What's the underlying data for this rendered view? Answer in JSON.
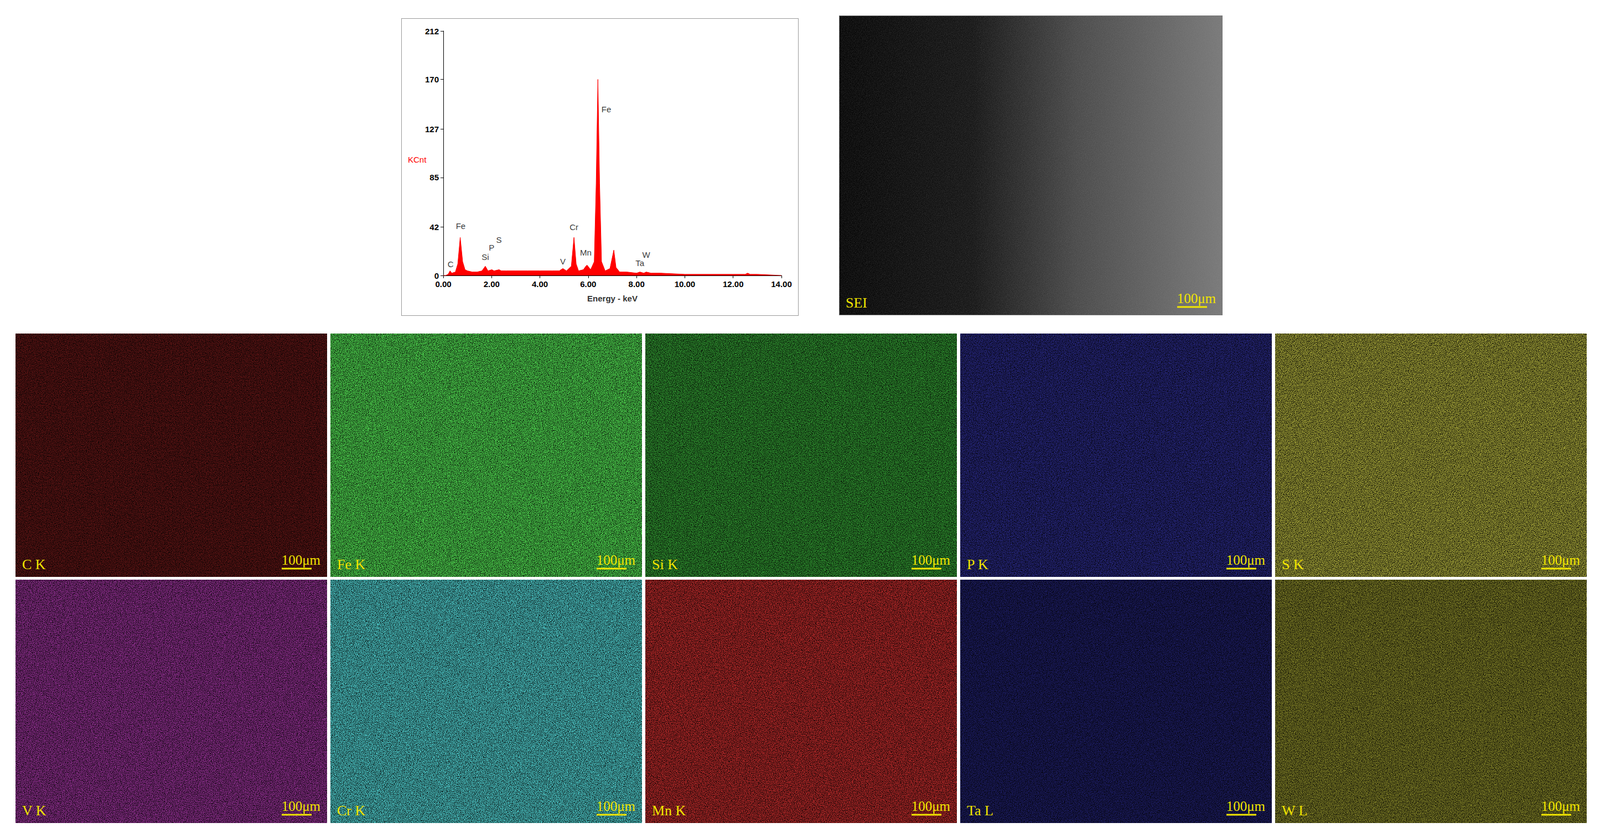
{
  "chart_data": {
    "type": "line",
    "x_label": "Energy - keV",
    "y_label": "KCnt",
    "color": "#ff0000",
    "grid": false,
    "x": [
      0.0,
      0.1,
      0.2,
      0.28,
      0.35,
      0.5,
      0.6,
      0.7,
      0.8,
      0.9,
      1.0,
      1.2,
      1.4,
      1.6,
      1.74,
      1.85,
      2.01,
      2.1,
      2.31,
      2.4,
      2.6,
      3.0,
      3.5,
      4.0,
      4.5,
      4.8,
      4.95,
      5.1,
      5.3,
      5.41,
      5.5,
      5.6,
      5.8,
      5.9,
      5.95,
      6.1,
      6.25,
      6.33,
      6.4,
      6.47,
      6.55,
      6.7,
      6.9,
      7.06,
      7.15,
      7.3,
      7.6,
      8.0,
      8.14,
      8.3,
      8.4,
      8.6,
      9.0,
      10.0,
      11.0,
      12.0,
      12.5,
      12.6,
      12.7,
      13.0,
      14.0
    ],
    "values": [
      0,
      0,
      1,
      4,
      2,
      3,
      10,
      33,
      12,
      5,
      4,
      3,
      3,
      4,
      8,
      4,
      5,
      4,
      5,
      4,
      4,
      4,
      4,
      4,
      4,
      4,
      6,
      4,
      8,
      33,
      10,
      4,
      5,
      8,
      9,
      5,
      12,
      80,
      170,
      80,
      12,
      4,
      6,
      22,
      7,
      3,
      3,
      2,
      3,
      2,
      3,
      2,
      2,
      1,
      1,
      1,
      1,
      2,
      1,
      1,
      0
    ],
    "xlim": [
      0,
      14
    ],
    "xticks": [
      {
        "value": 0,
        "label": "0.00"
      },
      {
        "value": 2,
        "label": "2.00"
      },
      {
        "value": 4,
        "label": "4.00"
      },
      {
        "value": 6,
        "label": "6.00"
      },
      {
        "value": 8,
        "label": "8.00"
      },
      {
        "value": 10,
        "label": "10.00"
      },
      {
        "value": 12,
        "label": "12.00"
      },
      {
        "value": 14,
        "label": "14.00"
      }
    ],
    "ylim": [
      0,
      212
    ],
    "yticks": [
      0,
      42,
      85,
      127,
      170,
      212
    ],
    "annotations": [
      {
        "text": "C",
        "x": 0.3,
        "y": 10
      },
      {
        "text": "Fe",
        "x": 0.72,
        "y": 43
      },
      {
        "text": "Si",
        "x": 1.74,
        "y": 16
      },
      {
        "text": "P",
        "x": 2.0,
        "y": 24
      },
      {
        "text": "S",
        "x": 2.3,
        "y": 31
      },
      {
        "text": "V",
        "x": 4.95,
        "y": 12
      },
      {
        "text": "Cr",
        "x": 5.41,
        "y": 42
      },
      {
        "text": "Mn",
        "x": 5.9,
        "y": 20
      },
      {
        "text": "Fe",
        "x": 6.75,
        "y": 144
      },
      {
        "text": "Ta",
        "x": 8.14,
        "y": 11
      },
      {
        "text": "W",
        "x": 8.4,
        "y": 18
      }
    ]
  },
  "sem_image": {
    "label": "SEI",
    "scale_bar": "100μm"
  },
  "maps": [
    {
      "label": "C K",
      "color": "#5a1414",
      "scale_bar": "100μm"
    },
    {
      "label": "Fe K",
      "color": "#4ed24e",
      "scale_bar": "100μm"
    },
    {
      "label": "Si K",
      "color": "#2f8f2f",
      "scale_bar": "100μm"
    },
    {
      "label": "P K",
      "color": "#26267a",
      "scale_bar": "100μm"
    },
    {
      "label": "S K",
      "color": "#a0a038",
      "scale_bar": "100μm"
    },
    {
      "label": "V K",
      "color": "#8a2e8a",
      "scale_bar": "100μm"
    },
    {
      "label": "Cr K",
      "color": "#4cc4c4",
      "scale_bar": "100μm"
    },
    {
      "label": "Mn K",
      "color": "#b02828",
      "scale_bar": "100μm"
    },
    {
      "label": "Ta L",
      "color": "#1c1c60",
      "scale_bar": "100μm"
    },
    {
      "label": "W L",
      "color": "#7c7c26",
      "scale_bar": "100μm"
    }
  ]
}
